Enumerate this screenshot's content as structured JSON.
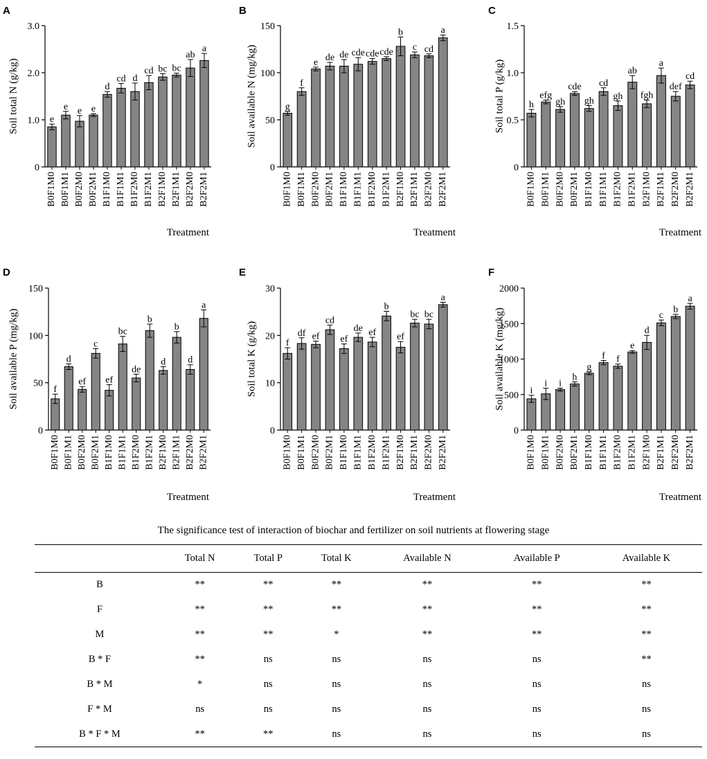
{
  "chart_data": [
    {
      "panel": "A",
      "type": "bar",
      "ylabel": "Soil total N (g/kg)",
      "xlabel": "Treatment",
      "ylim": [
        0,
        3.0
      ],
      "ticks": [
        "0",
        "1.0",
        "2.0",
        "3.0"
      ],
      "categories": [
        "B0F1M0",
        "B0F1M1",
        "B0F2M0",
        "B0F2M1",
        "B1F1M0",
        "B1F1M1",
        "B1F2M0",
        "B1F2M1",
        "B2F1M0",
        "B2F1M1",
        "B2F2M0",
        "B2F2M1"
      ],
      "values": [
        0.85,
        1.1,
        0.97,
        1.1,
        1.54,
        1.67,
        1.6,
        1.79,
        1.91,
        1.95,
        2.1,
        2.26
      ],
      "errors": [
        0.06,
        0.08,
        0.12,
        0.03,
        0.06,
        0.1,
        0.18,
        0.15,
        0.07,
        0.04,
        0.18,
        0.15
      ],
      "letters": [
        "e",
        "e",
        "e",
        "e",
        "d",
        "cd",
        "d",
        "cd",
        "bc",
        "bc",
        "ab",
        "a"
      ]
    },
    {
      "panel": "B",
      "type": "bar",
      "ylabel": "Soil available N (mg/kg)",
      "xlabel": "Treatment",
      "ylim": [
        0,
        150
      ],
      "ticks": [
        "0",
        "50",
        "100",
        "150"
      ],
      "categories": [
        "B0F1M0",
        "B0F1M1",
        "B0F2M0",
        "B0F2M1",
        "B1F1M0",
        "B1F1M1",
        "B1F2M0",
        "B1F2M1",
        "B2F1M0",
        "B2F1M1",
        "B2F2M0",
        "B2F2M1"
      ],
      "values": [
        57,
        80,
        104,
        107,
        107,
        109,
        112,
        115,
        128,
        119,
        118,
        137
      ],
      "errors": [
        2,
        4,
        2,
        4,
        7,
        7,
        3,
        2,
        10,
        3,
        2,
        3
      ],
      "letters": [
        "g",
        "f",
        "e",
        "de",
        "de",
        "cde",
        "cde",
        "cde",
        "b",
        "c",
        "cd",
        "a"
      ]
    },
    {
      "panel": "C",
      "type": "bar",
      "ylabel": "Soil total P (g/kg)",
      "xlabel": "Treatment",
      "ylim": [
        0,
        1.5
      ],
      "ticks": [
        "0",
        "0.5",
        "1.0",
        "1.5"
      ],
      "categories": [
        "B0F1M0",
        "B0F1M1",
        "B0F2M0",
        "B0F2M1",
        "B1F1M0",
        "B1F1M1",
        "B1F2M0",
        "B1F2M1",
        "B2F1M0",
        "B2F1M1",
        "B2F2M0",
        "B2F2M1"
      ],
      "values": [
        0.57,
        0.69,
        0.61,
        0.78,
        0.62,
        0.8,
        0.65,
        0.9,
        0.67,
        0.97,
        0.75,
        0.87
      ],
      "errors": [
        0.04,
        0.02,
        0.03,
        0.02,
        0.03,
        0.04,
        0.05,
        0.07,
        0.04,
        0.08,
        0.05,
        0.04
      ],
      "letters": [
        "h",
        "efg",
        "gh",
        "cde",
        "gh",
        "cd",
        "gh",
        "ab",
        "fgh",
        "a",
        "def",
        "cd"
      ]
    },
    {
      "panel": "D",
      "type": "bar",
      "ylabel": "Soil available P (mg/kg)",
      "xlabel": "Treatment",
      "ylim": [
        0,
        150
      ],
      "ticks": [
        "0",
        "50",
        "100",
        "150"
      ],
      "categories": [
        "B0F1M0",
        "B0F1M1",
        "B0F2M0",
        "B0F2M1",
        "B1F1M0",
        "B1F1M1",
        "B1F2M0",
        "B1F2M1",
        "B2F1M0",
        "B2F1M1",
        "B2F2M0",
        "B2F2M1"
      ],
      "values": [
        33,
        67,
        43,
        81,
        42,
        91,
        55,
        105,
        63,
        98,
        64,
        118
      ],
      "errors": [
        5,
        3,
        3,
        5,
        6,
        8,
        4,
        7,
        4,
        6,
        5,
        9
      ],
      "letters": [
        "f",
        "d",
        "ef",
        "c",
        "ef",
        "bc",
        "de",
        "b",
        "d",
        "b",
        "d",
        "a"
      ]
    },
    {
      "panel": "E",
      "type": "bar",
      "ylabel": "Soil total K (g/kg)",
      "xlabel": "Treatment",
      "ylim": [
        0,
        30
      ],
      "ticks": [
        "0",
        "10",
        "20",
        "30"
      ],
      "categories": [
        "B0F1M0",
        "B0F1M1",
        "B0F2M0",
        "B0F2M1",
        "B1F1M0",
        "B1F1M1",
        "B1F2M0",
        "B1F2M1",
        "B2F1M0",
        "B2F1M1",
        "B2F2M0",
        "B2F2M1"
      ],
      "values": [
        16.2,
        18.3,
        18.1,
        21.2,
        17.2,
        19.6,
        18.6,
        24.1,
        17.5,
        22.6,
        22.4,
        26.5
      ],
      "errors": [
        1.2,
        1.2,
        0.7,
        1.0,
        1.0,
        0.9,
        1.0,
        1.0,
        1.2,
        0.8,
        1.0,
        0.5
      ],
      "letters": [
        "f",
        "df",
        "ef",
        "cd",
        "ef",
        "de",
        "ef",
        "b",
        "ef",
        "bc",
        "bc",
        "a"
      ]
    },
    {
      "panel": "F",
      "type": "bar",
      "ylabel": "Soil available K (mg/kg)",
      "xlabel": "Treatment",
      "ylim": [
        0,
        2000
      ],
      "ticks": [
        "0",
        "500",
        "1000",
        "1500",
        "2000"
      ],
      "categories": [
        "B0F1M0",
        "B0F1M1",
        "B0F2M0",
        "B0F2M1",
        "B1F1M0",
        "B1F1M1",
        "B1F2M0",
        "B1F2M1",
        "B2F1M0",
        "B2F1M1",
        "B2F2M0",
        "B2F2M1"
      ],
      "values": [
        440,
        510,
        570,
        650,
        800,
        950,
        900,
        1100,
        1235,
        1510,
        1600,
        1745
      ],
      "errors": [
        50,
        80,
        20,
        30,
        20,
        30,
        30,
        20,
        100,
        40,
        30,
        40
      ],
      "letters": [
        "i",
        "i",
        "i",
        "h",
        "g",
        "f",
        "f",
        "e",
        "d",
        "c",
        "b",
        "a"
      ]
    }
  ],
  "table": {
    "caption": "The significance test of interaction of biochar and fertilizer on soil nutrients at flowering stage",
    "headers": [
      "",
      "Total N",
      "Total P",
      "Total K",
      "Available N",
      "Available P",
      "Available K"
    ],
    "rows": [
      [
        "B",
        "**",
        "**",
        "**",
        "**",
        "**",
        "**"
      ],
      [
        "F",
        "**",
        "**",
        "**",
        "**",
        "**",
        "**"
      ],
      [
        "M",
        "**",
        "**",
        "*",
        "**",
        "**",
        "**"
      ],
      [
        "B * F",
        "**",
        "ns",
        "ns",
        "ns",
        "ns",
        "**"
      ],
      [
        "B * M",
        "*",
        "ns",
        "ns",
        "ns",
        "ns",
        "ns"
      ],
      [
        "F * M",
        "ns",
        "ns",
        "ns",
        "ns",
        "ns",
        "ns"
      ],
      [
        "B * F * M",
        "**",
        "**",
        "ns",
        "ns",
        "ns",
        "ns"
      ]
    ]
  },
  "colors": {
    "bar_fill": "#858585",
    "bar_stroke": "#000000"
  }
}
